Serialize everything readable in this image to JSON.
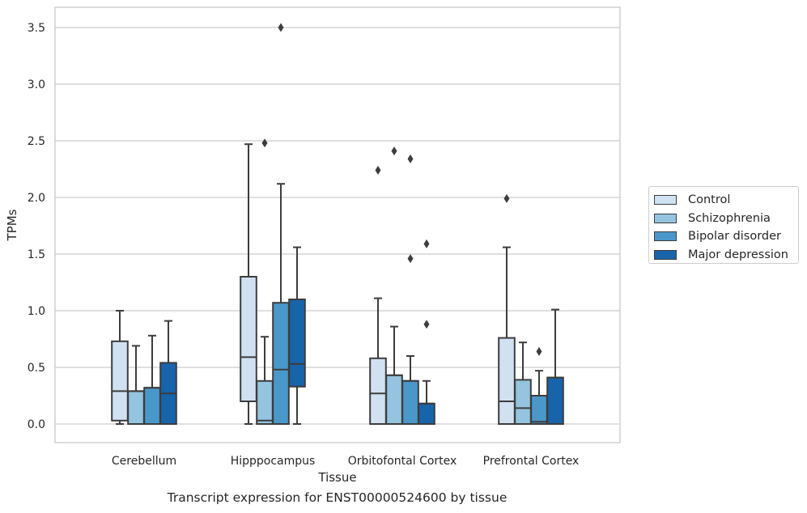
{
  "chart_data": {
    "type": "box",
    "caption": "Transcript expression for ENST00000524600 by tissue",
    "xlabel": "Tissue",
    "ylabel": "TPMs",
    "ylim": [
      -0.17,
      3.68
    ],
    "yticks": [
      "0.0",
      "0.5",
      "1.0",
      "1.5",
      "2.0",
      "2.5",
      "3.0",
      "3.5"
    ],
    "grid": "horizontal",
    "legend_position": "right",
    "categories": [
      "Cerebellum",
      "Hipppocampus",
      "Orbitofontal Cortex",
      "Prefrontal Cortex"
    ],
    "series": [
      {
        "name": "Control",
        "color": "#d0e1f2",
        "boxes": [
          {
            "q1": 0.03,
            "median": 0.29,
            "q3": 0.73,
            "whisker_low": 0.0,
            "whisker_high": 1.0,
            "outliers": []
          },
          {
            "q1": 0.2,
            "median": 0.59,
            "q3": 1.3,
            "whisker_low": 0.0,
            "whisker_high": 2.47,
            "outliers": []
          },
          {
            "q1": 0.0,
            "median": 0.27,
            "q3": 0.58,
            "whisker_low": 0.0,
            "whisker_high": 1.11,
            "outliers": [
              2.24
            ]
          },
          {
            "q1": 0.0,
            "median": 0.2,
            "q3": 0.76,
            "whisker_low": 0.0,
            "whisker_high": 1.56,
            "outliers": [
              1.99
            ]
          }
        ]
      },
      {
        "name": "Schizophrenia",
        "color": "#94c4df",
        "boxes": [
          {
            "q1": 0.0,
            "median": 0.29,
            "q3": 0.29,
            "whisker_low": 0.0,
            "whisker_high": 0.69,
            "outliers": []
          },
          {
            "q1": 0.0,
            "median": 0.03,
            "q3": 0.38,
            "whisker_low": 0.0,
            "whisker_high": 0.77,
            "outliers": [
              2.48
            ]
          },
          {
            "q1": 0.0,
            "median": 0.43,
            "q3": 0.43,
            "whisker_low": 0.0,
            "whisker_high": 0.86,
            "outliers": [
              2.41
            ]
          },
          {
            "q1": 0.0,
            "median": 0.14,
            "q3": 0.39,
            "whisker_low": 0.0,
            "whisker_high": 0.72,
            "outliers": []
          }
        ]
      },
      {
        "name": "Bipolar disorder",
        "color": "#4a98c9",
        "boxes": [
          {
            "q1": 0.0,
            "median": 0.32,
            "q3": 0.32,
            "whisker_low": 0.0,
            "whisker_high": 0.78,
            "outliers": []
          },
          {
            "q1": 0.0,
            "median": 0.48,
            "q3": 1.07,
            "whisker_low": 0.0,
            "whisker_high": 2.12,
            "outliers": [
              3.5
            ]
          },
          {
            "q1": 0.0,
            "median": 0.38,
            "q3": 0.38,
            "whisker_low": 0.0,
            "whisker_high": 0.6,
            "outliers": [
              2.34,
              1.46
            ]
          },
          {
            "q1": 0.0,
            "median": 0.02,
            "q3": 0.25,
            "whisker_low": 0.0,
            "whisker_high": 0.47,
            "outliers": [
              0.64
            ]
          }
        ]
      },
      {
        "name": "Major depression",
        "color": "#1764ab",
        "boxes": [
          {
            "q1": 0.0,
            "median": 0.27,
            "q3": 0.54,
            "whisker_low": 0.0,
            "whisker_high": 0.91,
            "outliers": []
          },
          {
            "q1": 0.33,
            "median": 0.53,
            "q3": 1.1,
            "whisker_low": 0.0,
            "whisker_high": 1.56,
            "outliers": []
          },
          {
            "q1": 0.0,
            "median": 0.18,
            "q3": 0.18,
            "whisker_low": 0.0,
            "whisker_high": 0.38,
            "outliers": [
              1.59,
              0.88
            ]
          },
          {
            "q1": 0.0,
            "median": 0.41,
            "q3": 0.41,
            "whisker_low": 0.0,
            "whisker_high": 1.01,
            "outliers": []
          }
        ]
      }
    ]
  }
}
